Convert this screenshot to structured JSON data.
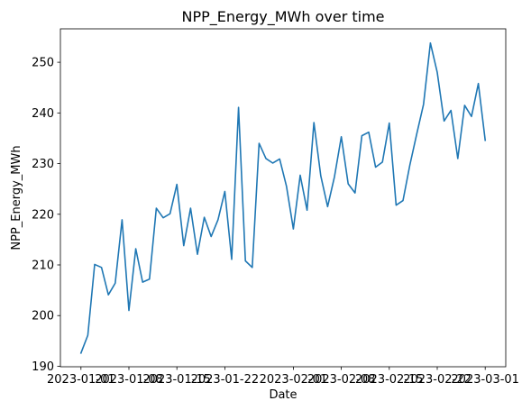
{
  "chart_data": {
    "type": "line",
    "title": "NPP_Energy_MWh over time",
    "xlabel": "Date",
    "ylabel": "NPP_Energy_MWh",
    "ylim": [
      189.9,
      256.6
    ],
    "xlim": [
      "2022-12-29",
      "2023-03-04"
    ],
    "grid": false,
    "color": "#1f77b4",
    "x_ticks": [
      "2023-01-01",
      "2023-01-08",
      "2023-01-15",
      "2023-01-22",
      "2023-02-01",
      "2023-02-08",
      "2023-02-15",
      "2023-02-22",
      "2023-03-01"
    ],
    "x_tick_labels": [
      "2023-01-01",
      "2023-01-08",
      "2023-01-15",
      "2023-01-22",
      "2023-02-01",
      "2023-02-08",
      "2023-02-15",
      "2023-02-22",
      "2023-03-01"
    ],
    "y_ticks": [
      190,
      200,
      210,
      220,
      230,
      240,
      250
    ],
    "series": [
      {
        "name": "",
        "x": [
          "2023-01-01",
          "2023-01-02",
          "2023-01-03",
          "2023-01-04",
          "2023-01-05",
          "2023-01-06",
          "2023-01-07",
          "2023-01-08",
          "2023-01-09",
          "2023-01-10",
          "2023-01-11",
          "2023-01-12",
          "2023-01-13",
          "2023-01-14",
          "2023-01-15",
          "2023-01-16",
          "2023-01-17",
          "2023-01-18",
          "2023-01-19",
          "2023-01-20",
          "2023-01-21",
          "2023-01-22",
          "2023-01-23",
          "2023-01-24",
          "2023-01-25",
          "2023-01-26",
          "2023-01-27",
          "2023-01-28",
          "2023-01-29",
          "2023-01-30",
          "2023-01-31",
          "2023-02-01",
          "2023-02-02",
          "2023-02-03",
          "2023-02-04",
          "2023-02-05",
          "2023-02-06",
          "2023-02-07",
          "2023-02-08",
          "2023-02-09",
          "2023-02-10",
          "2023-02-11",
          "2023-02-12",
          "2023-02-13",
          "2023-02-14",
          "2023-02-15",
          "2023-02-16",
          "2023-02-17",
          "2023-02-18",
          "2023-02-19",
          "2023-02-20",
          "2023-02-21",
          "2023-02-22",
          "2023-02-23",
          "2023-02-24",
          "2023-02-25",
          "2023-02-26",
          "2023-02-27",
          "2023-02-28",
          "2023-03-01"
        ],
        "values": [
          192.6,
          196.1,
          210.1,
          209.5,
          204.1,
          206.4,
          218.9,
          201.0,
          213.2,
          206.6,
          207.2,
          221.2,
          219.3,
          220.1,
          225.9,
          213.8,
          221.2,
          212.1,
          219.4,
          215.6,
          218.9,
          224.5,
          211.1,
          241.1,
          210.8,
          209.5,
          234.0,
          231.0,
          230.1,
          230.9,
          225.5,
          217.1,
          227.7,
          220.8,
          238.1,
          227.6,
          221.5,
          227.4,
          235.3,
          226.0,
          224.2,
          235.5,
          236.2,
          229.3,
          230.3,
          238.0,
          221.8,
          222.7,
          229.7,
          235.8,
          241.7,
          253.8,
          248.0,
          238.4,
          240.5,
          231.0,
          241.5,
          239.3,
          245.8,
          234.6
        ]
      }
    ]
  }
}
